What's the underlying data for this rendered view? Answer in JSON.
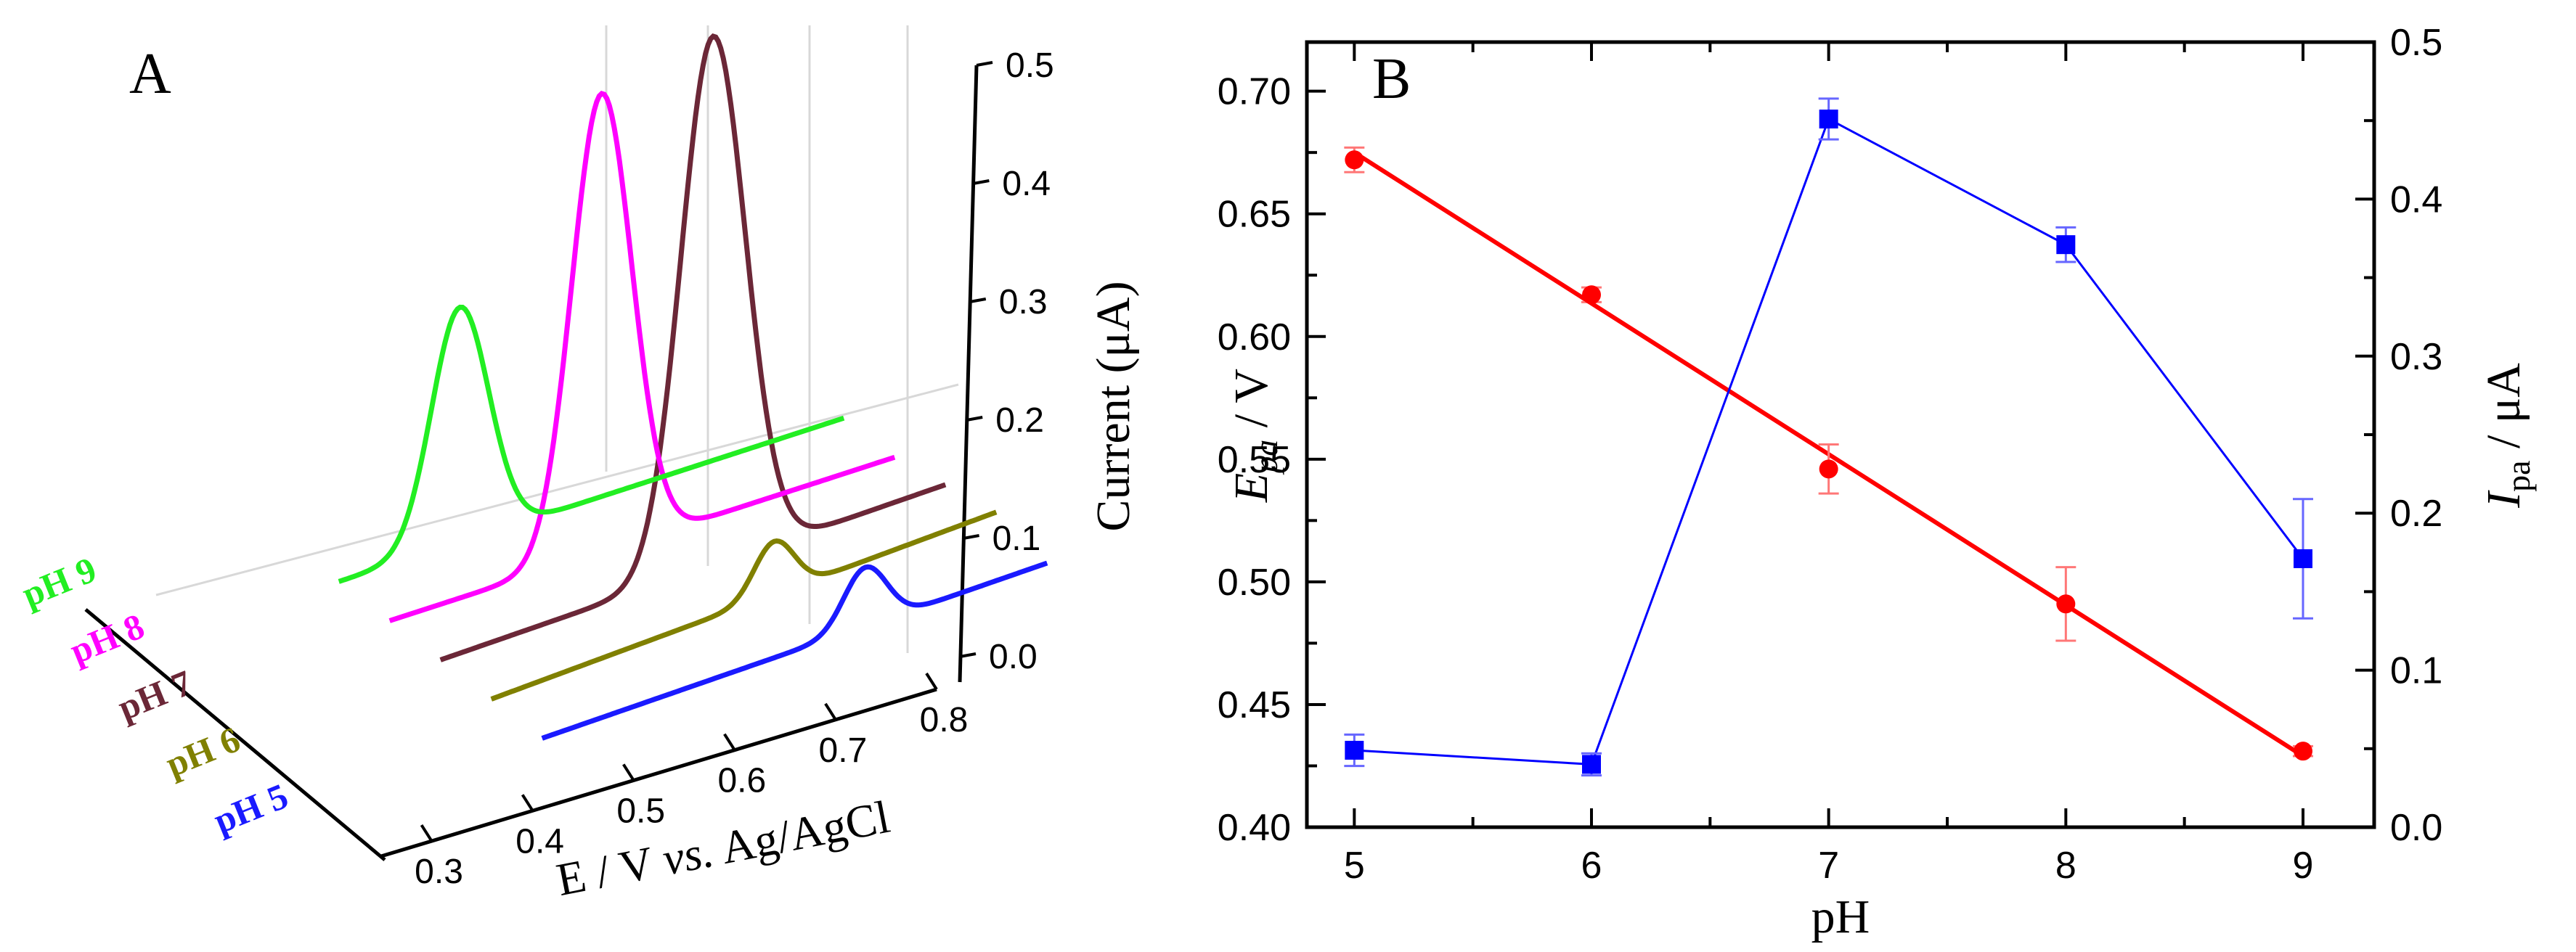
{
  "chart_data": [
    {
      "panel": "A",
      "type": "line",
      "panel_label": "A",
      "xlabel_prefix": "E / V ",
      "xlabel_italic": "vs.",
      "xlabel_suffix": " Ag/AgCl",
      "zlabel": "Current (μA)",
      "x_ticks": [
        "0.3",
        "0.4",
        "0.5",
        "0.6",
        "0.7",
        "0.8"
      ],
      "z_ticks": [
        "0.0",
        "0.1",
        "0.2",
        "0.3",
        "0.4",
        "0.5"
      ],
      "xlim": [
        0.25,
        0.8
      ],
      "zlim": [
        0.0,
        0.5
      ],
      "series": [
        {
          "name": "pH 5",
          "color": "#1a1aff",
          "peak_potential": 0.6,
          "peak_current": 0.05,
          "baseline": [
            0.0,
            0.02
          ],
          "width": 0.03
        },
        {
          "name": "pH 6",
          "color": "#808000",
          "peak_potential": 0.56,
          "peak_current": 0.045,
          "baseline": [
            0.0,
            0.03
          ],
          "width": 0.028
        },
        {
          "name": "pH 7",
          "color": "#6b2737",
          "peak_potential": 0.55,
          "peak_current": 0.45,
          "baseline": [
            0.0,
            0.02
          ],
          "width": 0.045
        },
        {
          "name": "pH 8",
          "color": "#ff00ff",
          "peak_potential": 0.49,
          "peak_current": 0.39,
          "baseline": [
            0.0,
            0.01
          ],
          "width": 0.042
        },
        {
          "name": "pH 9",
          "color": "#22ee22",
          "peak_potential": 0.4,
          "peak_current": 0.2,
          "baseline": [
            0.0,
            0.01
          ],
          "width": 0.04
        }
      ]
    },
    {
      "panel": "B",
      "type": "scatter",
      "panel_label": "B",
      "xlabel": "pH",
      "ylabel_left_main": "E",
      "ylabel_left_sub": "pa",
      "ylabel_left_unit": " / V",
      "ylabel_right_main": "I",
      "ylabel_right_sub": "pa",
      "ylabel_right_unit": " / μA",
      "xlim": [
        4.8,
        9.3
      ],
      "ylim_left": [
        0.4,
        0.72
      ],
      "ylim_right": [
        0.0,
        0.5
      ],
      "x_ticks": [
        "5",
        "6",
        "7",
        "8",
        "9"
      ],
      "y_left_ticks": [
        "0.40",
        "0.45",
        "0.50",
        "0.55",
        "0.60",
        "0.65",
        "0.70"
      ],
      "y_right_ticks": [
        "0.0",
        "0.1",
        "0.2",
        "0.3",
        "0.4",
        "0.5"
      ],
      "series": [
        {
          "name": "Epa",
          "axis": "left",
          "color": "#ff0000",
          "marker": "circle",
          "x": [
            5,
            6,
            7,
            8,
            9
          ],
          "y": [
            0.672,
            0.617,
            0.546,
            0.491,
            0.431
          ],
          "err": [
            0.005,
            0.003,
            0.01,
            0.015,
            0.002
          ],
          "fit": {
            "x": [
              5,
              9
            ],
            "y": [
              0.675,
              0.429
            ]
          }
        },
        {
          "name": "Ipa",
          "axis": "right",
          "color": "#0000ff",
          "marker": "square",
          "x": [
            5,
            6,
            7,
            8,
            9
          ],
          "y": [
            0.049,
            0.04,
            0.451,
            0.371,
            0.171
          ],
          "err": [
            0.01,
            0.007,
            0.013,
            0.011,
            0.038
          ]
        }
      ]
    }
  ]
}
